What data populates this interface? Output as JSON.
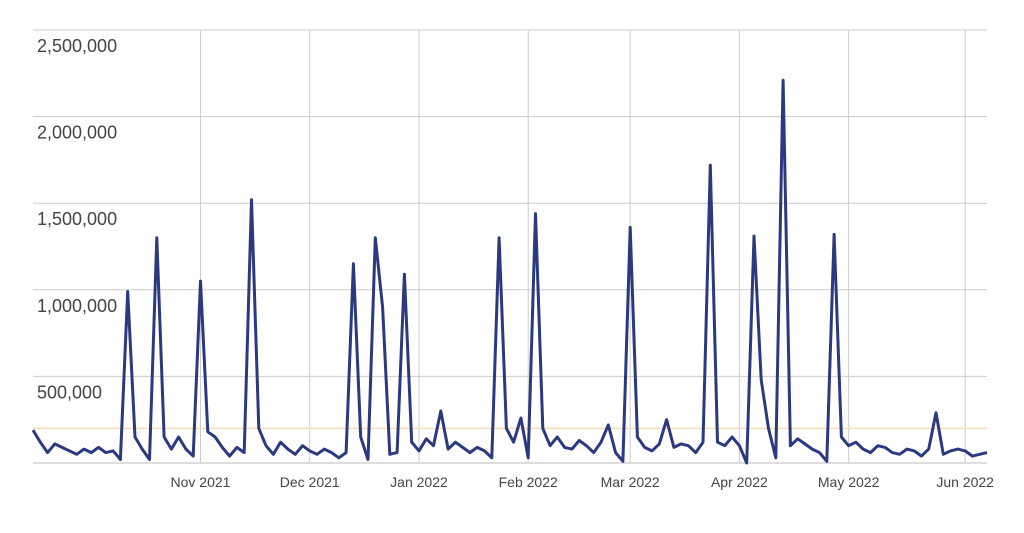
{
  "chart_data": {
    "type": "line",
    "categories": [
      null,
      null,
      null,
      null,
      null,
      null,
      null,
      null,
      null,
      null,
      null,
      null,
      null,
      null,
      null,
      null,
      null,
      null,
      null,
      null,
      null,
      null,
      null,
      "Nov 2021",
      null,
      null,
      null,
      null,
      null,
      null,
      null,
      null,
      null,
      null,
      null,
      null,
      null,
      null,
      "Dec 2021",
      null,
      null,
      null,
      null,
      null,
      null,
      null,
      null,
      null,
      null,
      null,
      null,
      null,
      null,
      "Jan 2022",
      null,
      null,
      null,
      null,
      null,
      null,
      null,
      null,
      null,
      null,
      null,
      null,
      null,
      null,
      "Feb 2022",
      null,
      null,
      null,
      null,
      null,
      null,
      null,
      null,
      null,
      null,
      null,
      null,
      null,
      "Mar 2022",
      null,
      null,
      null,
      null,
      null,
      null,
      null,
      null,
      null,
      null,
      null,
      null,
      null,
      null,
      "Apr 2022",
      null,
      null,
      null,
      null,
      null,
      null,
      null,
      null,
      null,
      null,
      null,
      null,
      null,
      null,
      "May 2022",
      null,
      null,
      null,
      null,
      null,
      null,
      null,
      null,
      null,
      null,
      null,
      null,
      null,
      null,
      null,
      "Jun 2022",
      null,
      null,
      null
    ],
    "series": [
      {
        "color": "#2b3a80",
        "values": [
          190000,
          120000,
          60000,
          110000,
          90000,
          70000,
          50000,
          80000,
          60000,
          90000,
          60000,
          70000,
          20000,
          990000,
          150000,
          80000,
          20000,
          1300000,
          150000,
          80000,
          150000,
          80000,
          40000,
          1050000,
          180000,
          150000,
          90000,
          40000,
          90000,
          60000,
          1520000,
          200000,
          100000,
          50000,
          120000,
          80000,
          50000,
          100000,
          70000,
          50000,
          80000,
          60000,
          30000,
          60000,
          1150000,
          150000,
          20000,
          1300000,
          900000,
          50000,
          60000,
          1090000,
          120000,
          70000,
          140000,
          100000,
          300000,
          80000,
          120000,
          90000,
          60000,
          90000,
          70000,
          30000,
          1300000,
          200000,
          120000,
          260000,
          30000,
          1440000,
          200000,
          100000,
          150000,
          90000,
          80000,
          130000,
          100000,
          60000,
          120000,
          220000,
          60000,
          10000,
          1360000,
          150000,
          90000,
          70000,
          110000,
          250000,
          90000,
          110000,
          100000,
          60000,
          120000,
          1720000,
          120000,
          100000,
          150000,
          100000,
          0,
          1310000,
          480000,
          200000,
          30000,
          2210000,
          100000,
          140000,
          110000,
          80000,
          60000,
          10000,
          1320000,
          150000,
          100000,
          120000,
          80000,
          60000,
          100000,
          90000,
          60000,
          50000,
          80000,
          70000,
          40000,
          80000,
          290000,
          50000,
          70000,
          80000,
          70000,
          40000,
          50000,
          60000
        ]
      }
    ],
    "ylim": [
      0,
      2500000
    ],
    "yticks": [
      {
        "value": 500000,
        "label": "500,000"
      },
      {
        "value": 1000000,
        "label": "1,000,000"
      },
      {
        "value": 1500000,
        "label": "1,500,000"
      },
      {
        "value": 2000000,
        "label": "2,000,000"
      },
      {
        "value": 2500000,
        "label": "2,500,000"
      }
    ],
    "reference_line": 200000,
    "reference_color": "#f5deb3",
    "grid": true
  }
}
